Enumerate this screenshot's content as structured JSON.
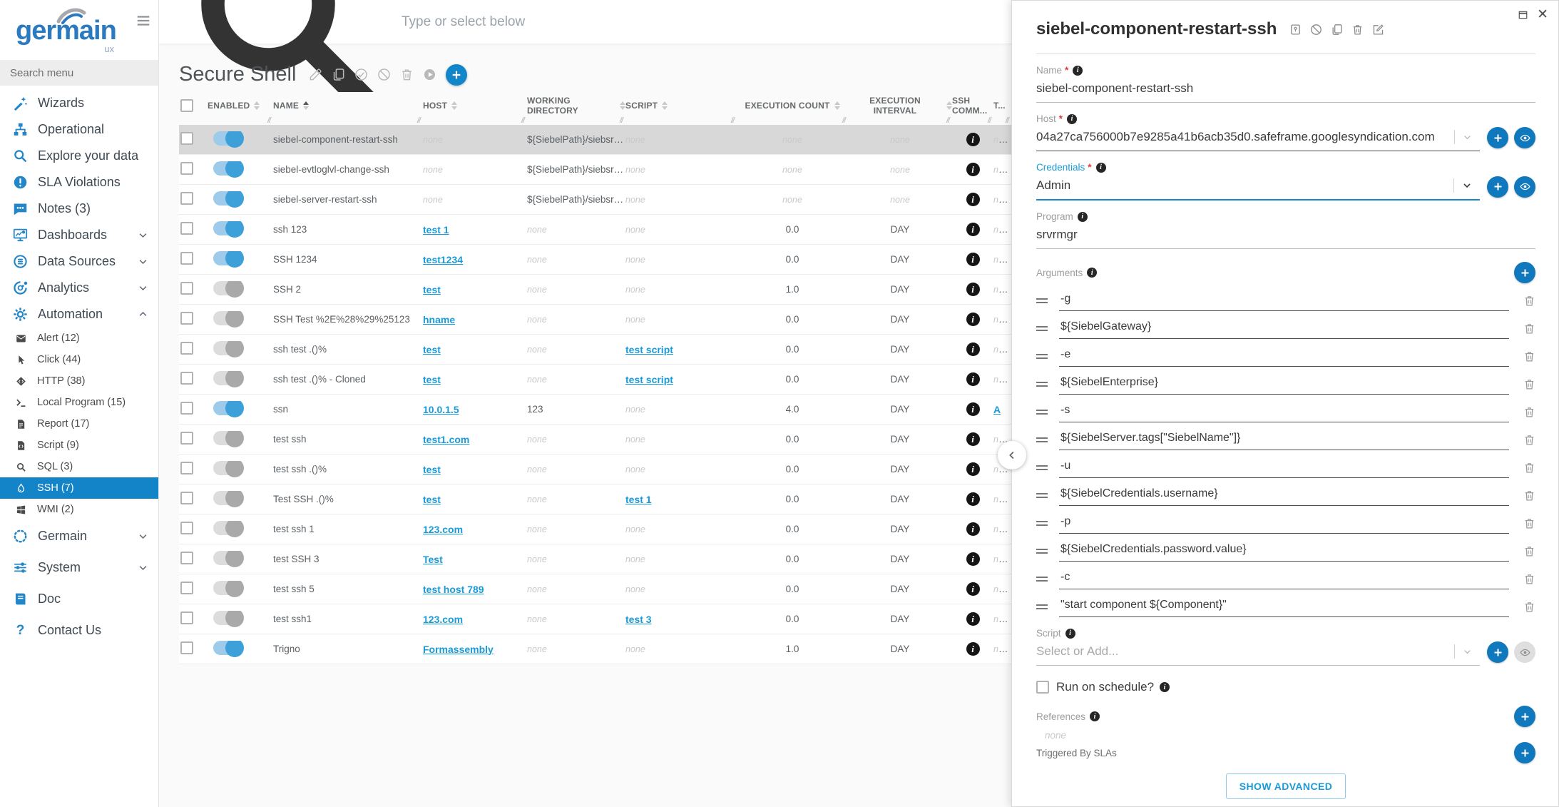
{
  "brand": {
    "name": "germain",
    "suffix": "ux"
  },
  "sidebar": {
    "search_placeholder": "Search menu",
    "items": [
      {
        "label": "Wizards",
        "icon": "wand-icon"
      },
      {
        "label": "Operational",
        "icon": "sitemap-icon"
      },
      {
        "label": "Explore your data",
        "icon": "search-icon"
      },
      {
        "label": "SLA Violations",
        "icon": "sla-icon"
      },
      {
        "label": "Notes (3)",
        "icon": "notes-icon"
      },
      {
        "label": "Dashboards",
        "icon": "dashboards-icon",
        "chevron": "down"
      },
      {
        "label": "Data Sources",
        "icon": "data-sources-icon",
        "chevron": "down"
      },
      {
        "label": "Analytics",
        "icon": "analytics-icon",
        "chevron": "down"
      },
      {
        "label": "Automation",
        "icon": "automation-icon",
        "chevron": "up"
      }
    ],
    "automation_items": [
      {
        "label": "Alert (12)",
        "icon": "alert-icon"
      },
      {
        "label": "Click (44)",
        "icon": "click-icon"
      },
      {
        "label": "HTTP (38)",
        "icon": "http-icon"
      },
      {
        "label": "Local Program (15)",
        "icon": "local-program-icon"
      },
      {
        "label": "Report (17)",
        "icon": "report-icon"
      },
      {
        "label": "Script (9)",
        "icon": "script-icon"
      },
      {
        "label": "SQL (3)",
        "icon": "sql-icon"
      },
      {
        "label": "SSH (7)",
        "icon": "ssh-icon",
        "active": true
      },
      {
        "label": "WMI (2)",
        "icon": "wmi-icon"
      }
    ],
    "footer_items": [
      {
        "label": "Germain",
        "icon": "germain-icon",
        "chevron": "down"
      },
      {
        "label": "System",
        "icon": "system-icon",
        "chevron": "down"
      },
      {
        "label": "Doc",
        "icon": "doc-icon"
      },
      {
        "label": "Contact Us",
        "icon": "contact-icon"
      }
    ]
  },
  "topbar": {
    "search_placeholder": "Type or select below"
  },
  "main": {
    "title": "Secure Shell",
    "table": {
      "headers": [
        "ENABLED",
        "NAME",
        "HOST",
        "WORKING DIRECTORY",
        "SCRIPT",
        "EXECUTION COUNT",
        "EXECUTION INTERVAL",
        "SSH COMM...",
        "T..."
      ],
      "rows": [
        {
          "enabled": true,
          "selected": true,
          "name": "siebel-component-restart-ssh",
          "host": "none",
          "host_link": false,
          "dir": "${SiebelPath}/siebsrvr/bin/",
          "script": "none",
          "script_link": false,
          "count": "none",
          "interval": "none",
          "t": "none",
          "t_link": false
        },
        {
          "enabled": true,
          "name": "siebel-evtloglvl-change-ssh",
          "host": "none",
          "host_link": false,
          "dir": "${SiebelPath}/siebsrvr/bin/",
          "script": "none",
          "script_link": false,
          "count": "none",
          "interval": "none",
          "t": "none",
          "t_link": false
        },
        {
          "enabled": true,
          "name": "siebel-server-restart-ssh",
          "host": "none",
          "host_link": false,
          "dir": "${SiebelPath}/siebsrvr/bin/",
          "script": "none",
          "script_link": false,
          "count": "none",
          "interval": "none",
          "t": "none",
          "t_link": false
        },
        {
          "enabled": true,
          "name": "ssh 123",
          "host": "test 1",
          "host_link": true,
          "dir": "none",
          "script": "none",
          "script_link": false,
          "count": "0.0",
          "interval": "DAY",
          "t": "none",
          "t_link": false
        },
        {
          "enabled": true,
          "name": "SSH 1234",
          "host": "test1234",
          "host_link": true,
          "dir": "none",
          "script": "none",
          "script_link": false,
          "count": "0.0",
          "interval": "DAY",
          "t": "none",
          "t_link": false
        },
        {
          "enabled": false,
          "name": "SSH 2",
          "host": "test",
          "host_link": true,
          "dir": "none",
          "script": "none",
          "script_link": false,
          "count": "1.0",
          "interval": "DAY",
          "t": "none",
          "t_link": false
        },
        {
          "enabled": false,
          "name": "SSH Test %2E%28%29%25123",
          "host": "hname",
          "host_link": true,
          "dir": "none",
          "script": "none",
          "script_link": false,
          "count": "0.0",
          "interval": "DAY",
          "t": "none",
          "t_link": false
        },
        {
          "enabled": false,
          "name": "ssh test .()%",
          "host": "test",
          "host_link": true,
          "dir": "none",
          "script": "test script",
          "script_link": true,
          "count": "0.0",
          "interval": "DAY",
          "t": "none",
          "t_link": false
        },
        {
          "enabled": false,
          "name": "ssh test .()% - Cloned",
          "host": "test",
          "host_link": true,
          "dir": "none",
          "script": "test script",
          "script_link": true,
          "count": "0.0",
          "interval": "DAY",
          "t": "none",
          "t_link": false
        },
        {
          "enabled": true,
          "name": "ssn",
          "host": "10.0.1.5",
          "host_link": true,
          "dir": "123",
          "script": "none",
          "script_link": false,
          "count": "4.0",
          "interval": "DAY",
          "t": "A",
          "t_link": true
        },
        {
          "enabled": false,
          "name": "test ssh",
          "host": "test1.com",
          "host_link": true,
          "dir": "none",
          "script": "none",
          "script_link": false,
          "count": "0.0",
          "interval": "DAY",
          "t": "none",
          "t_link": false
        },
        {
          "enabled": false,
          "name": "test ssh .()%",
          "host": "test",
          "host_link": true,
          "dir": "none",
          "script": "none",
          "script_link": false,
          "count": "0.0",
          "interval": "DAY",
          "t": "none",
          "t_link": false
        },
        {
          "enabled": false,
          "name": "Test SSH .()%",
          "host": "test",
          "host_link": true,
          "dir": "none",
          "script": "test 1",
          "script_link": true,
          "count": "0.0",
          "interval": "DAY",
          "t": "none",
          "t_link": false
        },
        {
          "enabled": false,
          "name": "test ssh 1",
          "host": "123.com",
          "host_link": true,
          "dir": "none",
          "script": "none",
          "script_link": false,
          "count": "0.0",
          "interval": "DAY",
          "t": "none",
          "t_link": false
        },
        {
          "enabled": false,
          "name": "test SSH 3",
          "host": "Test",
          "host_link": true,
          "dir": "none",
          "script": "none",
          "script_link": false,
          "count": "0.0",
          "interval": "DAY",
          "t": "none",
          "t_link": false
        },
        {
          "enabled": false,
          "name": "test ssh 5",
          "host": "test host 789",
          "host_link": true,
          "dir": "none",
          "script": "none",
          "script_link": false,
          "count": "0.0",
          "interval": "DAY",
          "t": "none",
          "t_link": false
        },
        {
          "enabled": false,
          "name": "test ssh1",
          "host": "123.com",
          "host_link": true,
          "dir": "none",
          "script": "test 3",
          "script_link": true,
          "count": "0.0",
          "interval": "DAY",
          "t": "none",
          "t_link": false
        },
        {
          "enabled": true,
          "name": "Trigno",
          "host": "Formassembly",
          "host_link": true,
          "dir": "none",
          "script": "none",
          "script_link": false,
          "count": "1.0",
          "interval": "DAY",
          "t": "none",
          "t_link": false
        }
      ]
    }
  },
  "panel": {
    "title": "siebel-component-restart-ssh",
    "name_label": "Name",
    "name_value": "siebel-component-restart-ssh",
    "host_label": "Host",
    "host_value": "04a27ca756000b7e9285a41b6acb35d0.safeframe.googlesyndication.com",
    "credentials_label": "Credentials",
    "credentials_value": "Admin",
    "program_label": "Program",
    "program_value": "srvrmgr",
    "arguments_label": "Arguments",
    "arguments": [
      "-g",
      "${SiebelGateway}",
      "-e",
      "${SiebelEnterprise}",
      "-s",
      "${SiebelServer.tags[\"SiebelName\"]}",
      "-u",
      "${SiebelCredentials.username}",
      "-p",
      "${SiebelCredentials.password.value}",
      "-c",
      "\"start component ${Component}\""
    ],
    "script_label": "Script",
    "script_placeholder": "Select or Add...",
    "schedule_label": "Run on schedule?",
    "references_label": "References",
    "references_value": "none",
    "triggered_label": "Triggered By SLAs",
    "show_advanced_label": "SHOW ADVANCED"
  }
}
